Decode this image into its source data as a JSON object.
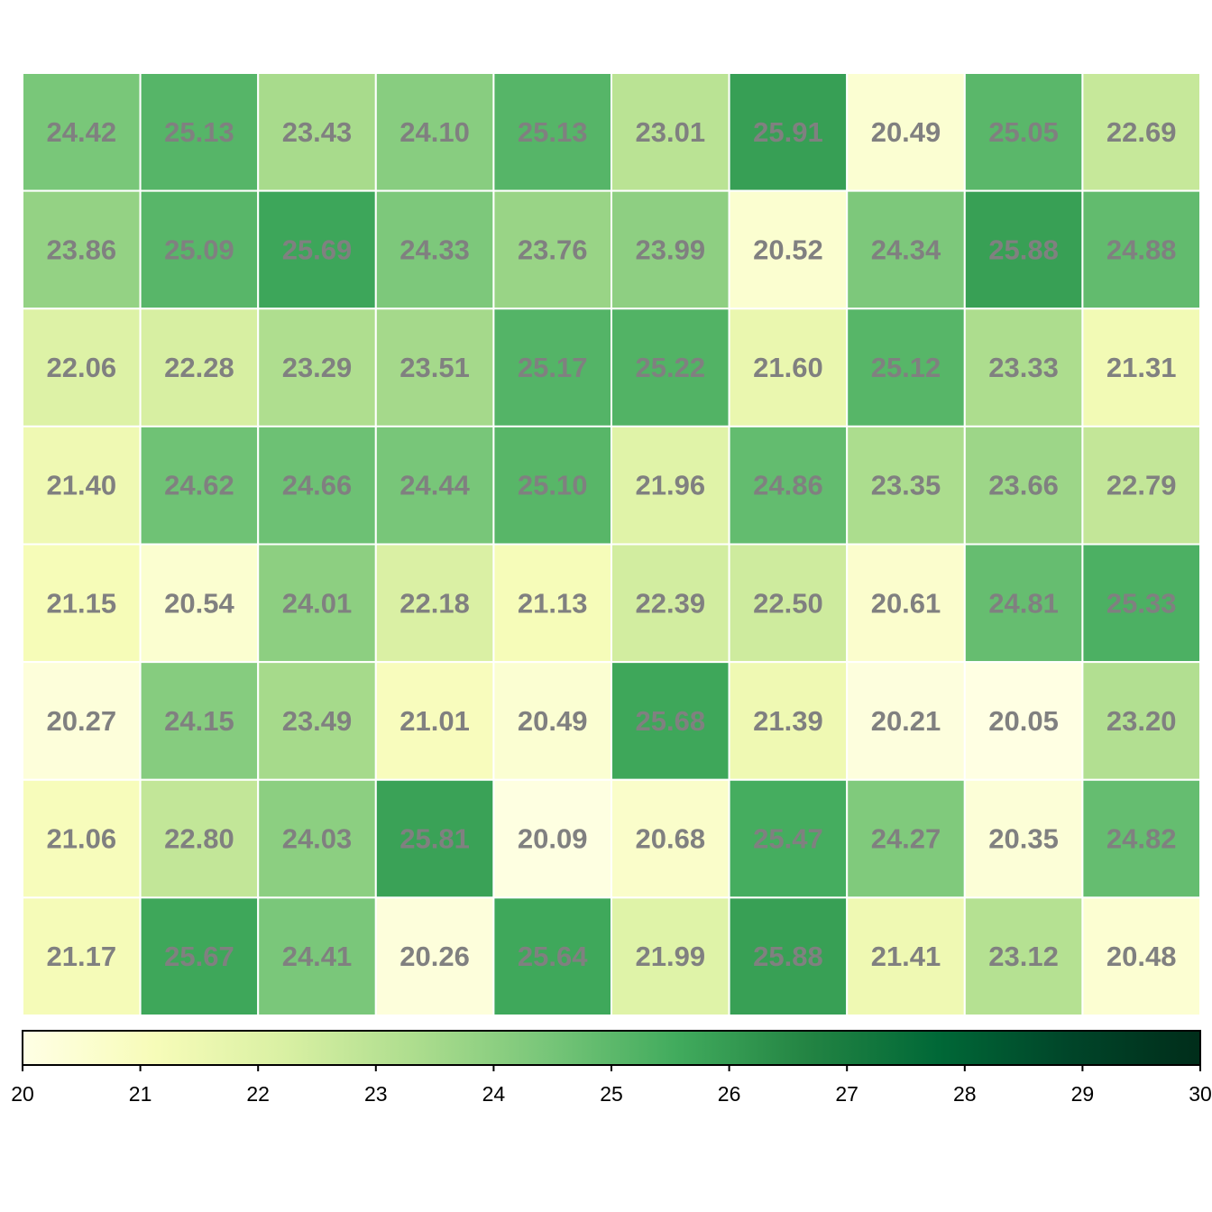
{
  "chart_data": {
    "type": "heatmap",
    "title": "",
    "xlabel": "",
    "ylabel": "",
    "rows": 8,
    "cols": 10,
    "values": [
      [
        24.42,
        25.13,
        23.43,
        24.1,
        25.13,
        23.01,
        25.91,
        20.49,
        25.05,
        22.69
      ],
      [
        23.86,
        25.09,
        25.69,
        24.33,
        23.76,
        23.99,
        20.52,
        24.34,
        25.88,
        24.88
      ],
      [
        22.06,
        22.28,
        23.29,
        23.51,
        25.17,
        25.22,
        21.6,
        25.12,
        23.33,
        21.31
      ],
      [
        21.4,
        24.62,
        24.66,
        24.44,
        25.1,
        21.96,
        24.86,
        23.35,
        23.66,
        22.79
      ],
      [
        21.15,
        20.54,
        24.01,
        22.18,
        21.13,
        22.39,
        22.5,
        20.61,
        24.81,
        25.33
      ],
      [
        20.27,
        24.15,
        23.49,
        21.01,
        20.49,
        25.68,
        21.39,
        20.21,
        20.05,
        23.2
      ],
      [
        21.06,
        22.8,
        24.03,
        25.81,
        20.09,
        20.68,
        25.47,
        24.27,
        20.35,
        24.82
      ],
      [
        21.17,
        25.67,
        24.41,
        20.26,
        25.64,
        21.99,
        25.88,
        21.41,
        23.12,
        20.48
      ]
    ],
    "labels": [
      [
        "24.42",
        "25.13",
        "23.43",
        "24.10",
        "25.13",
        "23.01",
        "25.91",
        "20.49",
        "25.05",
        "22.69"
      ],
      [
        "23.86",
        "25.09",
        "25.69",
        "24.33",
        "23.76",
        "23.99",
        "20.52",
        "24.34",
        "25.88",
        "24.88"
      ],
      [
        "22.06",
        "22.28",
        "23.29",
        "23.51",
        "25.17",
        "25.22",
        "21.60",
        "25.12",
        "23.33",
        "21.31"
      ],
      [
        "21.40",
        "24.62",
        "24.66",
        "24.44",
        "25.10",
        "21.96",
        "24.86",
        "23.35",
        "23.66",
        "22.79"
      ],
      [
        "21.15",
        "20.54",
        "24.01",
        "22.18",
        "21.13",
        "22.39",
        "22.50",
        "20.61",
        "24.81",
        "25.33"
      ],
      [
        "20.27",
        "24.15",
        "23.49",
        "21.01",
        "20.49",
        "25.68",
        "21.39",
        "20.21",
        "20.05",
        "23.20"
      ],
      [
        "21.06",
        "22.80",
        "24.03",
        "25.81",
        "20.09",
        "20.68",
        "25.47",
        "24.27",
        "20.35",
        "24.82"
      ],
      [
        "21.17",
        "25.67",
        "24.41",
        "20.26",
        "25.64",
        "21.99",
        "25.88",
        "21.41",
        "23.12",
        "20.48"
      ]
    ],
    "colorbar": {
      "min": 20,
      "max": 30,
      "ticks": [
        "20",
        "21",
        "22",
        "23",
        "24",
        "25",
        "26",
        "27",
        "28",
        "29",
        "30"
      ],
      "placement": "bottom",
      "colormap": "YlGn",
      "stops": [
        "#ffffe5",
        "#f7fcb9",
        "#d9f0a3",
        "#addd8e",
        "#78c679",
        "#41ab5d",
        "#238443",
        "#006837",
        "#004529",
        "#002d1a"
      ]
    },
    "label_color": "#808080",
    "grid_color": "#ffffff"
  }
}
